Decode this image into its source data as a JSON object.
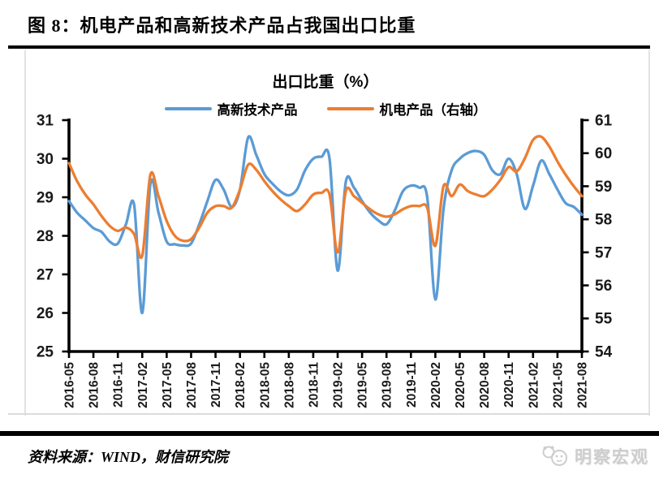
{
  "figure": {
    "title": "图 8：机电产品和高新技术产品占我国出口比重"
  },
  "chart_data": {
    "type": "line",
    "title": "出口比重（%）",
    "legend_position": "top",
    "grid": false,
    "colors": {
      "hightech_blue": "#5B9BD5",
      "mech_orange": "#ED7D31",
      "axis_black": "#000000"
    },
    "left_axis": {
      "min": 25,
      "max": 31,
      "ticks": [
        25,
        26,
        27,
        28,
        29,
        30,
        31
      ]
    },
    "right_axis": {
      "min": 54,
      "max": 61,
      "ticks": [
        54,
        55,
        56,
        57,
        58,
        59,
        60,
        61
      ]
    },
    "x_tick_labels": [
      "2016-05",
      "2016-08",
      "2016-11",
      "2017-02",
      "2017-05",
      "2017-08",
      "2017-11",
      "2018-02",
      "2018-05",
      "2018-08",
      "2018-11",
      "2019-02",
      "2019-05",
      "2019-08",
      "2019-11",
      "2020-02",
      "2020-05",
      "2020-08",
      "2020-11",
      "2021-02",
      "2021-05",
      "2021-08"
    ],
    "points_per_label": 3,
    "x": [
      "2016-05",
      "2016-06",
      "2016-07",
      "2016-08",
      "2016-09",
      "2016-10",
      "2016-11",
      "2016-12",
      "2017-01",
      "2017-02",
      "2017-03",
      "2017-04",
      "2017-05",
      "2017-06",
      "2017-07",
      "2017-08",
      "2017-09",
      "2017-10",
      "2017-11",
      "2017-12",
      "2018-01",
      "2018-02",
      "2018-03",
      "2018-04",
      "2018-05",
      "2018-06",
      "2018-07",
      "2018-08",
      "2018-09",
      "2018-10",
      "2018-11",
      "2018-12",
      "2019-01",
      "2019-02",
      "2019-03",
      "2019-04",
      "2019-05",
      "2019-06",
      "2019-07",
      "2019-08",
      "2019-09",
      "2019-10",
      "2019-11",
      "2019-12",
      "2020-01",
      "2020-02",
      "2020-03",
      "2020-04",
      "2020-05",
      "2020-06",
      "2020-07",
      "2020-08",
      "2020-09",
      "2020-10",
      "2020-11",
      "2020-12",
      "2021-01",
      "2021-02",
      "2021-03",
      "2021-04",
      "2021-05",
      "2021-06",
      "2021-07",
      "2021-08"
    ],
    "series": [
      {
        "name": "高新技术产品",
        "axis": "left",
        "color": "#5B9BD5",
        "values": [
          28.9,
          28.6,
          28.4,
          28.2,
          28.1,
          27.85,
          27.8,
          28.3,
          28.8,
          26.0,
          29.35,
          28.6,
          27.85,
          27.78,
          27.75,
          27.8,
          28.3,
          28.9,
          29.45,
          29.2,
          28.75,
          29.2,
          30.55,
          30.1,
          29.6,
          29.35,
          29.15,
          29.05,
          29.2,
          29.7,
          30.0,
          30.05,
          30.0,
          27.1,
          29.4,
          29.25,
          28.9,
          28.6,
          28.4,
          28.3,
          28.65,
          29.15,
          29.3,
          29.25,
          29.0,
          26.35,
          28.7,
          29.7,
          30.0,
          30.15,
          30.2,
          30.1,
          29.7,
          29.6,
          30.0,
          29.6,
          28.7,
          29.3,
          29.95,
          29.6,
          29.2,
          28.85,
          28.75,
          28.55
        ]
      },
      {
        "name": "机电产品（右轴）",
        "axis": "right",
        "color": "#ED7D31",
        "values": [
          59.7,
          59.15,
          58.75,
          58.45,
          58.1,
          57.8,
          57.65,
          57.75,
          57.55,
          56.9,
          59.35,
          58.7,
          57.95,
          57.5,
          57.35,
          57.4,
          57.75,
          58.2,
          58.4,
          58.4,
          58.35,
          58.9,
          59.65,
          59.5,
          59.15,
          58.85,
          58.6,
          58.4,
          58.25,
          58.45,
          58.75,
          58.8,
          58.75,
          57.0,
          58.85,
          58.7,
          58.5,
          58.3,
          58.15,
          58.08,
          58.15,
          58.3,
          58.4,
          58.4,
          58.35,
          57.2,
          59.0,
          58.7,
          59.05,
          58.85,
          58.75,
          58.7,
          58.9,
          59.2,
          59.58,
          59.45,
          59.85,
          60.4,
          60.5,
          60.2,
          59.75,
          59.35,
          59.0,
          58.7
        ]
      }
    ]
  },
  "footer": {
    "source": "资料来源：WIND，财信研究院",
    "watermark": "明察宏观"
  }
}
